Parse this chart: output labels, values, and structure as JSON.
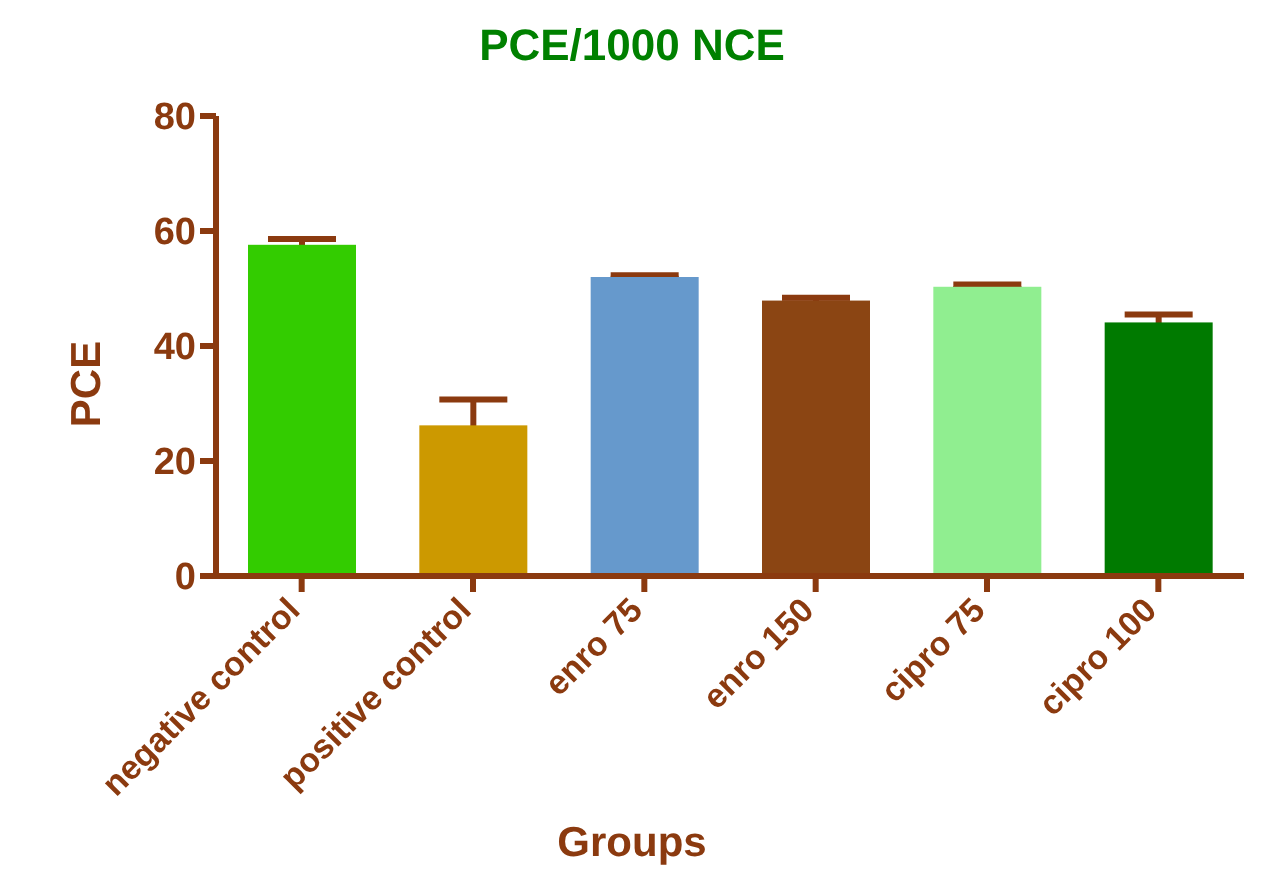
{
  "chart_data": {
    "type": "bar",
    "title": "PCE/1000 NCE",
    "xlabel": "Groups",
    "ylabel": "PCE",
    "categories": [
      "negative control",
      "positive control",
      "enro 75",
      "enro 150",
      "cipro 75",
      "cipro 100"
    ],
    "values": [
      57.6,
      26.2,
      52,
      47.9,
      50.3,
      44.1
    ],
    "colors": [
      "#33cc00",
      "#cc9900",
      "#6699cc",
      "#8b4513",
      "#90ee90",
      "#007a00"
    ],
    "errors": [
      1,
      4.5,
      0.3,
      0.5,
      0.4,
      1.4
    ],
    "ylim": [
      0,
      80
    ],
    "yticks": [
      0,
      20,
      40,
      60,
      80
    ],
    "grid": false,
    "legend": false
  }
}
